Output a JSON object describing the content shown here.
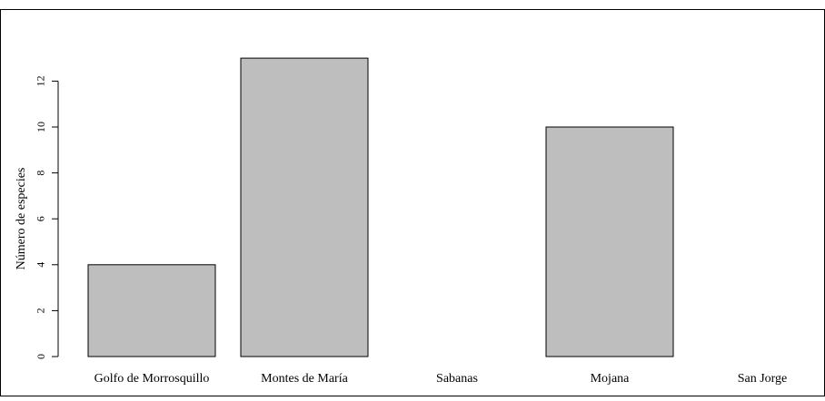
{
  "chart_data": {
    "type": "bar",
    "title": "",
    "xlabel": "",
    "ylabel": "Número de especies",
    "categories": [
      "Golfo de Morrosquillo",
      "Montes de María",
      "Sabanas",
      "Mojana",
      "San Jorge"
    ],
    "values": [
      4,
      13,
      0,
      10,
      0
    ],
    "ylim": [
      0,
      13
    ],
    "yticks": [
      0,
      2,
      4,
      6,
      8,
      10,
      12
    ],
    "grid": false,
    "legend": "none",
    "colors": {
      "bar_fill": "#bebebe",
      "bar_stroke": "#000000"
    }
  }
}
